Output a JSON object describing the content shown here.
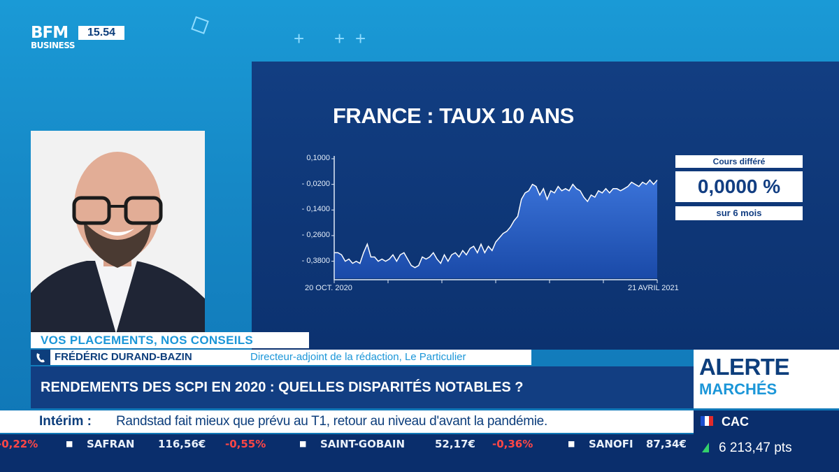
{
  "channel": {
    "logo_line1": "BFM",
    "logo_line2": "BUSINESS",
    "clock": "15.54"
  },
  "chart_data": {
    "type": "area",
    "title": "FRANCE : TAUX 10 ANS",
    "y_ticks": [
      "0,1000",
      "- 0,0200",
      "- 0,1400",
      "- 0,2600",
      "- 0,3800"
    ],
    "y_tick_values": [
      0.1,
      -0.02,
      -0.14,
      -0.26,
      -0.38
    ],
    "ylim": [
      -0.46,
      0.1
    ],
    "x_start_label": "20 OCT. 2020",
    "x_end_label": "21 AVRIL 2021",
    "grid": false,
    "color": "#2a5fc4",
    "values": [
      -0.34,
      -0.34,
      -0.35,
      -0.38,
      -0.37,
      -0.39,
      -0.38,
      -0.39,
      -0.34,
      -0.3,
      -0.36,
      -0.36,
      -0.38,
      -0.37,
      -0.38,
      -0.37,
      -0.35,
      -0.38,
      -0.35,
      -0.34,
      -0.37,
      -0.4,
      -0.41,
      -0.4,
      -0.36,
      -0.37,
      -0.36,
      -0.34,
      -0.37,
      -0.39,
      -0.35,
      -0.38,
      -0.35,
      -0.34,
      -0.36,
      -0.33,
      -0.35,
      -0.32,
      -0.31,
      -0.34,
      -0.3,
      -0.34,
      -0.31,
      -0.33,
      -0.29,
      -0.27,
      -0.25,
      -0.24,
      -0.22,
      -0.19,
      -0.17,
      -0.09,
      -0.06,
      -0.05,
      -0.02,
      -0.03,
      -0.07,
      -0.04,
      -0.09,
      -0.05,
      -0.06,
      -0.03,
      -0.05,
      -0.04,
      -0.05,
      -0.02,
      -0.04,
      -0.05,
      -0.08,
      -0.1,
      -0.07,
      -0.08,
      -0.05,
      -0.06,
      -0.04,
      -0.06,
      -0.04,
      -0.04,
      -0.05,
      -0.04,
      -0.03,
      -0.01,
      -0.02,
      -0.03,
      -0.01,
      -0.02,
      0.0,
      -0.02,
      0.0
    ]
  },
  "info": {
    "top": "Cours différé",
    "value": "0,0000 %",
    "bottom": "sur 6 mois"
  },
  "lower_third": {
    "program": "VOS PLACEMENTS, NOS CONSEILS",
    "name": "FRÉDÉRIC DURAND-BAZIN",
    "role": "Directeur-adjoint de la rédaction, Le Particulier",
    "headline": "RENDEMENTS DES SCPI EN 2020 : QUELLES DISPARITÉS NOTABLES ?"
  },
  "alert": {
    "line1": "ALERTE",
    "line2": "MARCHÉS"
  },
  "news": {
    "label": "Intérim :",
    "text": "Randstad fait mieux que prévu au T1, retour au niveau d'avant la pandémie."
  },
  "ticker": [
    {
      "name": "",
      "value": "",
      "change": "-0,22%"
    },
    {
      "name": "SAFRAN",
      "value": "116,56€",
      "change": "-0,55%"
    },
    {
      "name": "SAINT-GOBAIN",
      "value": "52,17€",
      "change": "-0,36%"
    },
    {
      "name": "SANOFI",
      "value": "87,34€",
      "change": ""
    }
  ],
  "index": {
    "name": "CAC",
    "value": "6 213,47 pts"
  }
}
